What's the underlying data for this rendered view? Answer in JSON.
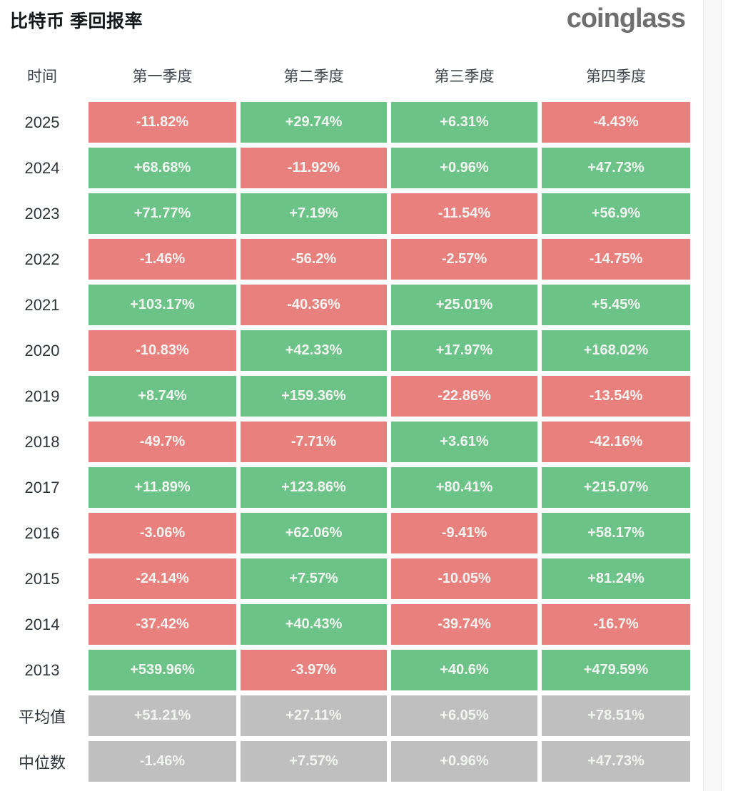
{
  "page": {
    "title": "比特币 季回报率",
    "logo_text": "coinglass"
  },
  "colors": {
    "positive_green": "#6cc388",
    "negative_red": "#e8807d",
    "summary_gray": "#bfbfbf",
    "cell_text": "#f2f4f1"
  },
  "table": {
    "headers": [
      "时间",
      "第一季度",
      "第二季度",
      "第三季度",
      "第四季度"
    ],
    "rows": [
      {
        "label": "2025",
        "cells": [
          {
            "text": "-11.82%",
            "tone": "red"
          },
          {
            "text": "+29.74%",
            "tone": "green"
          },
          {
            "text": "+6.31%",
            "tone": "green"
          },
          {
            "text": "-4.43%",
            "tone": "red"
          }
        ]
      },
      {
        "label": "2024",
        "cells": [
          {
            "text": "+68.68%",
            "tone": "green"
          },
          {
            "text": "-11.92%",
            "tone": "red"
          },
          {
            "text": "+0.96%",
            "tone": "green"
          },
          {
            "text": "+47.73%",
            "tone": "green"
          }
        ]
      },
      {
        "label": "2023",
        "cells": [
          {
            "text": "+71.77%",
            "tone": "green"
          },
          {
            "text": "+7.19%",
            "tone": "green"
          },
          {
            "text": "-11.54%",
            "tone": "red"
          },
          {
            "text": "+56.9%",
            "tone": "green"
          }
        ]
      },
      {
        "label": "2022",
        "cells": [
          {
            "text": "-1.46%",
            "tone": "red"
          },
          {
            "text": "-56.2%",
            "tone": "red"
          },
          {
            "text": "-2.57%",
            "tone": "red"
          },
          {
            "text": "-14.75%",
            "tone": "red"
          }
        ]
      },
      {
        "label": "2021",
        "cells": [
          {
            "text": "+103.17%",
            "tone": "green"
          },
          {
            "text": "-40.36%",
            "tone": "red"
          },
          {
            "text": "+25.01%",
            "tone": "green"
          },
          {
            "text": "+5.45%",
            "tone": "green"
          }
        ]
      },
      {
        "label": "2020",
        "cells": [
          {
            "text": "-10.83%",
            "tone": "red"
          },
          {
            "text": "+42.33%",
            "tone": "green"
          },
          {
            "text": "+17.97%",
            "tone": "green"
          },
          {
            "text": "+168.02%",
            "tone": "green"
          }
        ]
      },
      {
        "label": "2019",
        "cells": [
          {
            "text": "+8.74%",
            "tone": "green"
          },
          {
            "text": "+159.36%",
            "tone": "green"
          },
          {
            "text": "-22.86%",
            "tone": "red"
          },
          {
            "text": "-13.54%",
            "tone": "red"
          }
        ]
      },
      {
        "label": "2018",
        "cells": [
          {
            "text": "-49.7%",
            "tone": "red"
          },
          {
            "text": "-7.71%",
            "tone": "red"
          },
          {
            "text": "+3.61%",
            "tone": "green"
          },
          {
            "text": "-42.16%",
            "tone": "red"
          }
        ]
      },
      {
        "label": "2017",
        "cells": [
          {
            "text": "+11.89%",
            "tone": "green"
          },
          {
            "text": "+123.86%",
            "tone": "green"
          },
          {
            "text": "+80.41%",
            "tone": "green"
          },
          {
            "text": "+215.07%",
            "tone": "green"
          }
        ]
      },
      {
        "label": "2016",
        "cells": [
          {
            "text": "-3.06%",
            "tone": "red"
          },
          {
            "text": "+62.06%",
            "tone": "green"
          },
          {
            "text": "-9.41%",
            "tone": "red"
          },
          {
            "text": "+58.17%",
            "tone": "green"
          }
        ]
      },
      {
        "label": "2015",
        "cells": [
          {
            "text": "-24.14%",
            "tone": "red"
          },
          {
            "text": "+7.57%",
            "tone": "green"
          },
          {
            "text": "-10.05%",
            "tone": "red"
          },
          {
            "text": "+81.24%",
            "tone": "green"
          }
        ]
      },
      {
        "label": "2014",
        "cells": [
          {
            "text": "-37.42%",
            "tone": "red"
          },
          {
            "text": "+40.43%",
            "tone": "green"
          },
          {
            "text": "-39.74%",
            "tone": "red"
          },
          {
            "text": "-16.7%",
            "tone": "red"
          }
        ]
      },
      {
        "label": "2013",
        "cells": [
          {
            "text": "+539.96%",
            "tone": "green"
          },
          {
            "text": "-3.97%",
            "tone": "red"
          },
          {
            "text": "+40.6%",
            "tone": "green"
          },
          {
            "text": "+479.59%",
            "tone": "green"
          }
        ]
      },
      {
        "label": "平均值",
        "cells": [
          {
            "text": "+51.21%",
            "tone": "gray"
          },
          {
            "text": "+27.11%",
            "tone": "gray"
          },
          {
            "text": "+6.05%",
            "tone": "gray"
          },
          {
            "text": "+78.51%",
            "tone": "gray"
          }
        ]
      },
      {
        "label": "中位数",
        "cells": [
          {
            "text": "-1.46%",
            "tone": "gray"
          },
          {
            "text": "+7.57%",
            "tone": "gray"
          },
          {
            "text": "+0.96%",
            "tone": "gray"
          },
          {
            "text": "+47.73%",
            "tone": "gray"
          }
        ]
      }
    ]
  },
  "chart_data": {
    "type": "heatmap",
    "title": "比特币 季回报率",
    "columns": [
      "第一季度",
      "第二季度",
      "第三季度",
      "第四季度"
    ],
    "rows": [
      "2025",
      "2024",
      "2023",
      "2022",
      "2021",
      "2020",
      "2019",
      "2018",
      "2017",
      "2016",
      "2015",
      "2014",
      "2013",
      "平均值",
      "中位数"
    ],
    "values_pct": [
      [
        -11.82,
        29.74,
        6.31,
        -4.43
      ],
      [
        68.68,
        -11.92,
        0.96,
        47.73
      ],
      [
        71.77,
        7.19,
        -11.54,
        56.9
      ],
      [
        -1.46,
        -56.2,
        -2.57,
        -14.75
      ],
      [
        103.17,
        -40.36,
        25.01,
        5.45
      ],
      [
        -10.83,
        42.33,
        17.97,
        168.02
      ],
      [
        8.74,
        159.36,
        -22.86,
        -13.54
      ],
      [
        -49.7,
        -7.71,
        3.61,
        -42.16
      ],
      [
        11.89,
        123.86,
        80.41,
        215.07
      ],
      [
        -3.06,
        62.06,
        -9.41,
        58.17
      ],
      [
        -24.14,
        7.57,
        -10.05,
        81.24
      ],
      [
        -37.42,
        40.43,
        -39.74,
        -16.7
      ],
      [
        539.96,
        -3.97,
        40.6,
        479.59
      ],
      [
        51.21,
        27.11,
        6.05,
        78.51
      ],
      [
        -1.46,
        7.57,
        0.96,
        47.73
      ]
    ],
    "color_rule": "positive=green #6cc388, negative=red #e8807d, summary rows (平均值/中位数)=gray #bfbfbf",
    "legend_position": "none",
    "grid": false
  }
}
